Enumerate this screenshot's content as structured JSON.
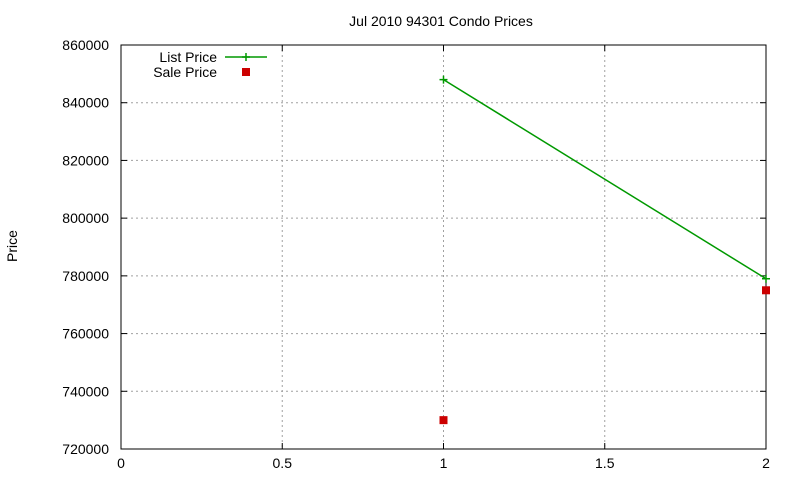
{
  "chart_data": {
    "type": "line",
    "title": "Jul 2010 94301 Condo Prices",
    "xlabel": "",
    "ylabel": "Price",
    "xlim": [
      0,
      2
    ],
    "ylim": [
      720000,
      860000
    ],
    "x_ticks": [
      0,
      0.5,
      1,
      1.5,
      2
    ],
    "x_tick_labels": [
      "0",
      "0.5",
      "1",
      "1.5",
      "2"
    ],
    "y_ticks": [
      720000,
      740000,
      760000,
      780000,
      800000,
      820000,
      840000,
      860000
    ],
    "y_tick_labels": [
      "720000",
      "740000",
      "760000",
      "780000",
      "800000",
      "820000",
      "840000",
      "860000"
    ],
    "grid": true,
    "legend_position": "top-left",
    "series": [
      {
        "name": "List Price",
        "style": "line-plus",
        "color": "#009900",
        "x": [
          1,
          2
        ],
        "y": [
          848000,
          779000
        ]
      },
      {
        "name": "Sale Price",
        "style": "square-points",
        "color": "#cc0000",
        "x": [
          1,
          2
        ],
        "y": [
          730000,
          775000
        ]
      }
    ]
  }
}
